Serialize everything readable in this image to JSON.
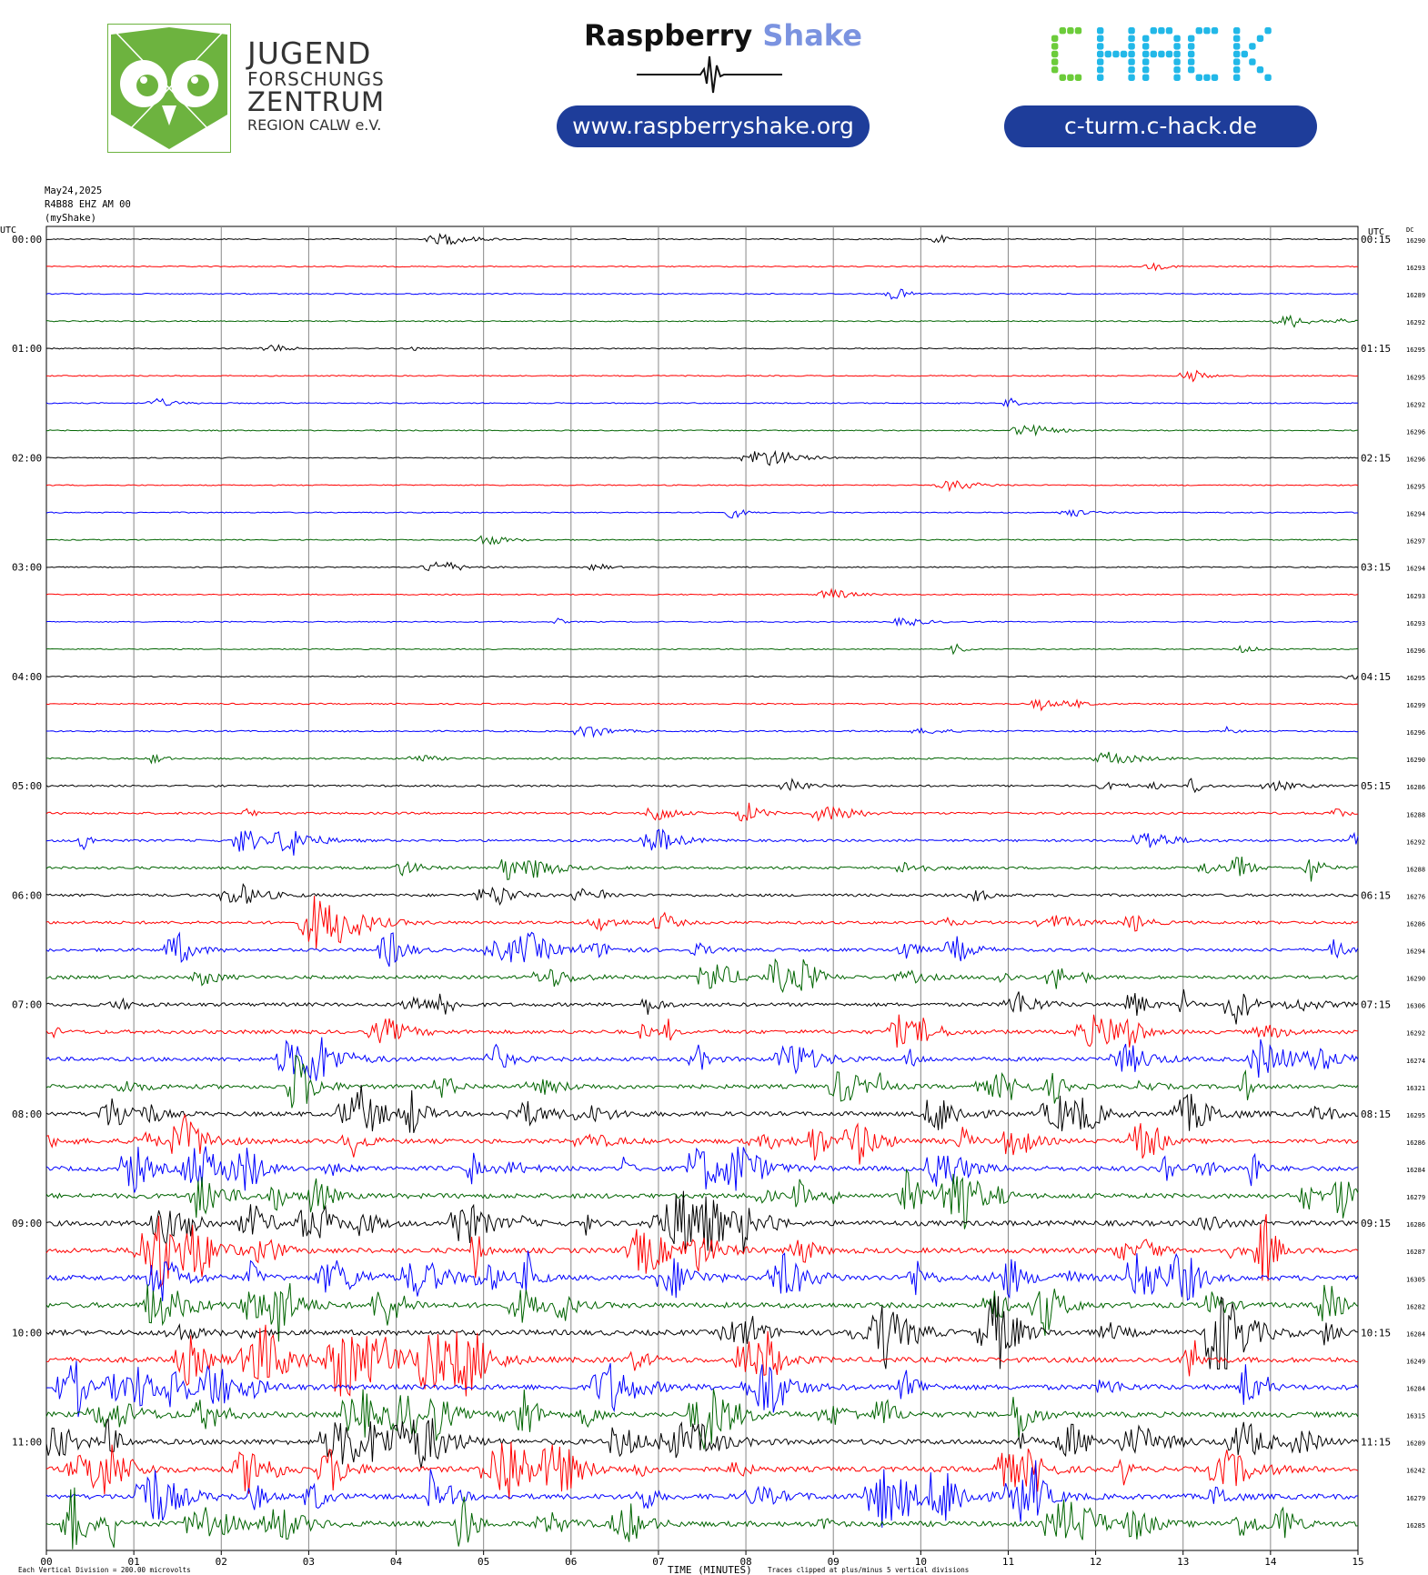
{
  "header": {
    "jfz": {
      "line1": "JUGEND",
      "line2": "FORSCHUNGS",
      "line3": "ZENTRUM",
      "line4": "REGION CALW e.V.",
      "color": "#6db33f"
    },
    "raspberry": {
      "word1": "Raspberry",
      "word2": "Shake",
      "url": "www.raspberryshake.org"
    },
    "chack": {
      "logo": "CHACK",
      "url": "c-turm.c-hack.de",
      "green": "#6ccc3a",
      "blue": "#22b8e8"
    }
  },
  "meta": {
    "date": "May24,2025",
    "station": "R4B88 EHZ AM 00",
    "source": "(myShake)"
  },
  "chart_data": {
    "type": "line",
    "xlabel": "TIME (MINUTES)",
    "x_ticks": [
      "00",
      "01",
      "02",
      "03",
      "04",
      "05",
      "06",
      "07",
      "08",
      "09",
      "10",
      "11",
      "12",
      "13",
      "14",
      "15"
    ],
    "xlim": [
      0,
      15
    ],
    "left_axis_label": "UTC",
    "right_axis_label": "UTC",
    "dc_label": "DC",
    "left_times": [
      "00:00",
      "01:00",
      "02:00",
      "03:00",
      "04:00",
      "05:00",
      "06:00",
      "07:00",
      "08:00",
      "09:00",
      "10:00",
      "11:00"
    ],
    "right_times": [
      "00:15",
      "01:15",
      "02:15",
      "03:15",
      "04:15",
      "05:15",
      "06:15",
      "07:15",
      "08:15",
      "09:15",
      "10:15",
      "11:15"
    ],
    "dc_values": [
      16290,
      16293,
      16289,
      16292,
      16295,
      16295,
      16292,
      16296,
      16296,
      16295,
      16294,
      16297,
      16294,
      16293,
      16293,
      16296,
      16295,
      16299,
      16296,
      16290,
      16286,
      16288,
      16292,
      16288,
      16276,
      16286,
      16294,
      16290,
      16306,
      16292,
      16274,
      16321,
      16295,
      16286,
      16284,
      16279,
      16286,
      16287,
      16305,
      16282,
      16284,
      16249,
      16284,
      16315,
      16289,
      16242,
      16279,
      16285
    ],
    "trace_colors": [
      "#000000",
      "#ff0000",
      "#0000ff",
      "#006400"
    ],
    "row_minutes": 15,
    "footer_left": "Each Vertical Division =  200.00 microvolts",
    "footer_right": "Traces clipped at plus/minus 5 vertical divisions"
  }
}
